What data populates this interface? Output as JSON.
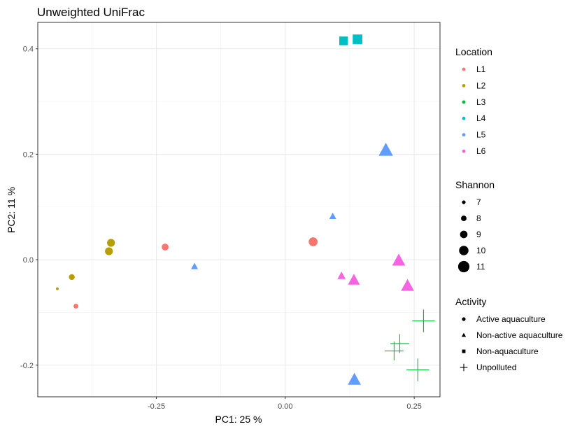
{
  "chart_data": {
    "type": "scatter",
    "title": "Unweighted UniFrac",
    "xlabel": "PC1:  25 %",
    "ylabel": "PC2:  11 %",
    "xlim": [
      -0.48,
      0.3
    ],
    "ylim": [
      -0.26,
      0.45
    ],
    "x_ticks": [
      -0.25,
      0.0,
      0.25
    ],
    "x_tick_labels": [
      "-0.25",
      "0.00",
      "0.25"
    ],
    "y_ticks": [
      -0.2,
      0.0,
      0.2,
      0.4
    ],
    "y_tick_labels": [
      "-0.2",
      "0.0",
      "0.2",
      "0.4"
    ],
    "grid": true,
    "legend_placement": "right",
    "legends": {
      "location": {
        "title": "Location",
        "items": [
          {
            "label": "L1",
            "color": "#F8766D"
          },
          {
            "label": "L2",
            "color": "#B79F00"
          },
          {
            "label": "L3",
            "color": "#00BA38"
          },
          {
            "label": "L4",
            "color": "#00BFC4"
          },
          {
            "label": "L5",
            "color": "#619CFF"
          },
          {
            "label": "L6",
            "color": "#F564E3"
          }
        ]
      },
      "shannon": {
        "title": "Shannon",
        "items": [
          {
            "label": "7",
            "value": 7
          },
          {
            "label": "8",
            "value": 8
          },
          {
            "label": "9",
            "value": 9
          },
          {
            "label": "10",
            "value": 10
          },
          {
            "label": "11",
            "value": 11
          }
        ]
      },
      "activity": {
        "title": "Activity",
        "items": [
          {
            "label": "Active aquaculture",
            "shape": "circle"
          },
          {
            "label": "Non-active aquaculture",
            "shape": "triangle"
          },
          {
            "label": "Non-aquaculture",
            "shape": "square"
          },
          {
            "label": "Unpolluted",
            "shape": "plus"
          }
        ]
      }
    },
    "points": [
      {
        "x": 0.113,
        "y": 0.415,
        "location": "L4",
        "activity": "Non-aquaculture",
        "shannon": 10
      },
      {
        "x": 0.14,
        "y": 0.418,
        "location": "L4",
        "activity": "Non-aquaculture",
        "shannon": 10.5
      },
      {
        "x": 0.195,
        "y": 0.207,
        "location": "L5",
        "activity": "Non-active aquaculture",
        "shannon": 11
      },
      {
        "x": 0.092,
        "y": 0.082,
        "location": "L5",
        "activity": "Non-active aquaculture",
        "shannon": 8
      },
      {
        "x": -0.176,
        "y": -0.013,
        "location": "L5",
        "activity": "Non-active aquaculture",
        "shannon": 8
      },
      {
        "x": 0.134,
        "y": -0.228,
        "location": "L5",
        "activity": "Non-active aquaculture",
        "shannon": 10.5
      },
      {
        "x": 0.054,
        "y": 0.034,
        "location": "L1",
        "activity": "Active aquaculture",
        "shannon": 9.5
      },
      {
        "x": -0.233,
        "y": 0.024,
        "location": "L1",
        "activity": "Active aquaculture",
        "shannon": 8.5
      },
      {
        "x": -0.406,
        "y": -0.088,
        "location": "L1",
        "activity": "Active aquaculture",
        "shannon": 7.5
      },
      {
        "x": -0.338,
        "y": 0.032,
        "location": "L2",
        "activity": "Active aquaculture",
        "shannon": 9
      },
      {
        "x": -0.342,
        "y": 0.016,
        "location": "L2",
        "activity": "Active aquaculture",
        "shannon": 9
      },
      {
        "x": -0.414,
        "y": -0.033,
        "location": "L2",
        "activity": "Active aquaculture",
        "shannon": 8
      },
      {
        "x": -0.442,
        "y": -0.055,
        "location": "L2",
        "activity": "Active aquaculture",
        "shannon": 6.5
      },
      {
        "x": 0.22,
        "y": -0.002,
        "location": "L6",
        "activity": "Non-active aquaculture",
        "shannon": 10.5
      },
      {
        "x": 0.237,
        "y": -0.05,
        "location": "L6",
        "activity": "Non-active aquaculture",
        "shannon": 10.5
      },
      {
        "x": 0.133,
        "y": -0.039,
        "location": "L6",
        "activity": "Non-active aquaculture",
        "shannon": 10
      },
      {
        "x": 0.109,
        "y": -0.031,
        "location": "L6",
        "activity": "Non-active aquaculture",
        "shannon": 8.5
      },
      {
        "x": 0.268,
        "y": -0.116,
        "location": "L3",
        "activity": "Unpolluted",
        "shannon": 11
      },
      {
        "x": 0.222,
        "y": -0.159,
        "location": "L3",
        "activity": "Unpolluted",
        "shannon": 10
      },
      {
        "x": 0.211,
        "y": -0.173,
        "location": "L3",
        "activity": "Unpolluted",
        "shannon": 10
      },
      {
        "x": 0.257,
        "y": -0.209,
        "location": "L3",
        "activity": "Unpolluted",
        "shannon": 11
      }
    ]
  }
}
